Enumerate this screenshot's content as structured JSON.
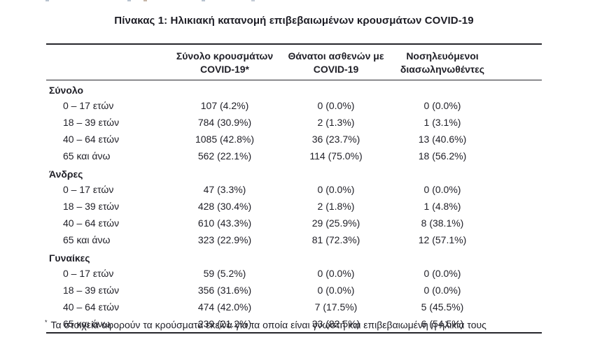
{
  "title": "Πίνακας 1: Ηλικιακή κατανομή επιβεβαιωμένων κρουσμάτων COVID-19",
  "table": {
    "header_columns": [
      {
        "line1": "Σύνολο κρουσμάτων",
        "line2": "COVID-19*"
      },
      {
        "line1": "Θάνατοι ασθενών με",
        "line2": "COVID-19"
      },
      {
        "line1": "Νοσηλευόμενοι",
        "line2": "διασωληνωθέντες"
      }
    ],
    "sections": [
      {
        "label": "Σύνολο",
        "rows": [
          {
            "label": "0 – 17 ετών",
            "values": [
              "107 (4.2%)",
              "0 (0.0%)",
              "0 (0.0%)"
            ]
          },
          {
            "label": "18 – 39 ετών",
            "values": [
              "784 (30.9%)",
              "2 (1.3%)",
              "1 (3.1%)"
            ]
          },
          {
            "label": "40 – 64 ετών",
            "values": [
              "1085 (42.8%)",
              "36 (23.7%)",
              "13 (40.6%)"
            ]
          },
          {
            "label": "65 και άνω",
            "values": [
              "562 (22.1%)",
              "114 (75.0%)",
              "18 (56.2%)"
            ]
          }
        ]
      },
      {
        "label": "Άνδρες",
        "rows": [
          {
            "label": "0 – 17 ετών",
            "values": [
              "47 (3.3%)",
              "0 (0.0%)",
              "0 (0.0%)"
            ]
          },
          {
            "label": "18 – 39 ετών",
            "values": [
              "428 (30.4%)",
              "2 (1.8%)",
              "1 (4.8%)"
            ]
          },
          {
            "label": "40 – 64 ετών",
            "values": [
              "610 (43.3%)",
              "29 (25.9%)",
              "8 (38.1%)"
            ]
          },
          {
            "label": "65 και άνω",
            "values": [
              "323 (22.9%)",
              "81 (72.3%)",
              "12 (57.1%)"
            ]
          }
        ]
      },
      {
        "label": "Γυναίκες",
        "rows": [
          {
            "label": "0 – 17 ετών",
            "values": [
              "59 (5.2%)",
              "0 (0.0%)",
              "0 (0.0%)"
            ]
          },
          {
            "label": "18 – 39 ετών",
            "values": [
              "356 (31.6%)",
              "0 (0.0%)",
              "0 (0.0%)"
            ]
          },
          {
            "label": "40 – 64 ετών",
            "values": [
              "474 (42.0%)",
              "7 (17.5%)",
              "5 (45.5%)"
            ]
          },
          {
            "label": "65 και άνω",
            "values": [
              "239 (21.2%)",
              "33 (82.5%)",
              "6 (54.5%)"
            ]
          }
        ]
      }
    ]
  },
  "footnote": {
    "marker": "*",
    "text": "Τα στοιχεία αφορούν τα κρούσματα εκείνα για τα οποία είναι γνωστή και επιβεβαιωμένη η ηλικία τους"
  }
}
